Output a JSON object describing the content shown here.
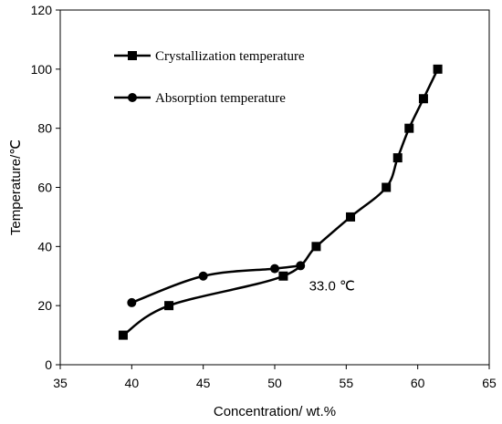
{
  "chart_data": {
    "type": "line",
    "xlabel": "Concentration/ wt.%",
    "ylabel": "Temperature/℃",
    "xlim": [
      35,
      65
    ],
    "ylim": [
      0,
      120
    ],
    "xticks": [
      35,
      40,
      45,
      50,
      55,
      60,
      65
    ],
    "yticks": [
      0,
      20,
      40,
      60,
      80,
      100,
      120
    ],
    "grid": false,
    "legend_position": "top-left",
    "series": [
      {
        "name": "Crystallization temperature",
        "marker": "square",
        "color": "#000000",
        "x": [
          39.4,
          42.6,
          50.6,
          52.9,
          55.3,
          57.8,
          58.6,
          59.4,
          60.4,
          61.4
        ],
        "y": [
          10,
          20,
          30,
          40,
          50,
          60,
          70,
          80,
          90,
          100
        ]
      },
      {
        "name": "Absorption temperature",
        "marker": "circle",
        "color": "#000000",
        "x": [
          40.0,
          45.0,
          50.0,
          51.8
        ],
        "y": [
          21,
          30,
          32.5,
          33.5
        ]
      }
    ],
    "annotations": [
      {
        "text": "33.0 ℃",
        "x": 52.4,
        "y": 27
      }
    ]
  }
}
